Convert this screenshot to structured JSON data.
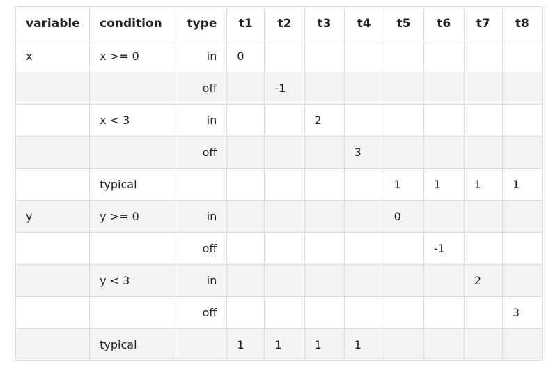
{
  "headers": [
    "variable",
    "condition",
    "type",
    "t1",
    "t2",
    "t3",
    "t4",
    "t5",
    "t6",
    "t7",
    "t8"
  ],
  "rows": [
    [
      "x",
      "x >= 0",
      "in",
      "0",
      "",
      "",
      "",
      "",
      "",
      "",
      ""
    ],
    [
      "",
      "",
      "off",
      "",
      "-1",
      "",
      "",
      "",
      "",
      "",
      ""
    ],
    [
      "",
      "x < 3",
      "in",
      "",
      "",
      "2",
      "",
      "",
      "",
      "",
      ""
    ],
    [
      "",
      "",
      "off",
      "",
      "",
      "",
      "3",
      "",
      "",
      "",
      ""
    ],
    [
      "",
      "typical",
      "",
      "",
      "",
      "",
      "",
      "1",
      "1",
      "1",
      "1"
    ],
    [
      "y",
      "y >= 0",
      "in",
      "",
      "",
      "",
      "",
      "0",
      "",
      "",
      ""
    ],
    [
      "",
      "",
      "off",
      "",
      "",
      "",
      "",
      "",
      "-1",
      "",
      ""
    ],
    [
      "",
      "y < 3",
      "in",
      "",
      "",
      "",
      "",
      "",
      "",
      "2",
      ""
    ],
    [
      "",
      "",
      "off",
      "",
      "",
      "",
      "",
      "",
      "",
      "",
      "3"
    ],
    [
      "",
      "typical",
      "",
      "1",
      "1",
      "1",
      "1",
      "",
      "",
      "",
      ""
    ]
  ]
}
